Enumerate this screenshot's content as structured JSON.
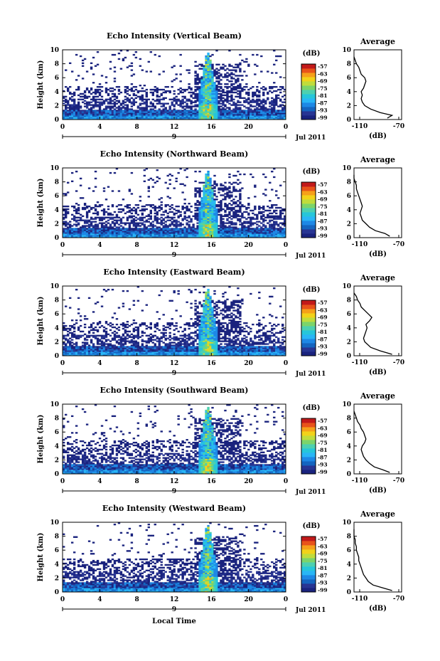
{
  "chart_data": [
    {
      "type": "heatmap",
      "title": "Echo Intensity (Vertical Beam)",
      "beam": "vertical",
      "ylabel": "Height (km)",
      "ylim": [
        0,
        10
      ],
      "yticks": [
        "0",
        "2",
        "4",
        "6",
        "8",
        "10"
      ],
      "xticks": [
        "0",
        "4",
        "8",
        "12",
        "16",
        "20",
        "0"
      ],
      "date_tick": "9",
      "date_label": "Jul 2011",
      "colorbar": {
        "unit": "(dB)",
        "ticks": [
          "-57",
          "-63",
          "-69",
          "-75",
          "-81",
          "-87",
          "-93",
          "-99"
        ]
      },
      "average": {
        "title": "Average",
        "xlabel": "(dB)",
        "xticks": [
          "-110",
          "-70"
        ],
        "xlim": [
          -110,
          -70
        ],
        "ylim": [
          0,
          10
        ],
        "profile": [
          [
            -82,
            0.2
          ],
          [
            -78,
            0.6
          ],
          [
            -88,
            1.0
          ],
          [
            -96,
            1.5
          ],
          [
            -101,
            2.0
          ],
          [
            -103,
            2.5
          ],
          [
            -104,
            3.0
          ],
          [
            -103,
            3.5
          ],
          [
            -104,
            4.0
          ],
          [
            -102,
            4.5
          ],
          [
            -101,
            5.0
          ],
          [
            -100,
            5.5
          ],
          [
            -101,
            6.0
          ],
          [
            -104,
            6.5
          ],
          [
            -105,
            7.0
          ],
          [
            -106,
            7.5
          ],
          [
            -108,
            8.0
          ],
          [
            -109,
            8.5
          ],
          [
            -110,
            9.0
          ]
        ]
      }
    },
    {
      "type": "heatmap",
      "title": "Echo Intensity (Northward Beam)",
      "beam": "northward",
      "ylabel": "Height (km)",
      "ylim": [
        0,
        10
      ],
      "yticks": [
        "0",
        "2",
        "4",
        "6",
        "8",
        "10"
      ],
      "xticks": [
        "0",
        "4",
        "8",
        "12",
        "16",
        "20",
        "0"
      ],
      "date_tick": "9",
      "date_label": "Jul 2011",
      "colorbar": {
        "unit": "(dB)",
        "ticks": [
          "-57",
          "-63",
          "-69",
          "-75",
          "-81",
          "-87",
          "-93",
          "-99"
        ]
      },
      "average": {
        "title": "Average",
        "xlabel": "(dB)",
        "xticks": [
          "-110",
          "-70"
        ],
        "xlim": [
          -110,
          -70
        ],
        "ylim": [
          0,
          10
        ],
        "profile": [
          [
            -80,
            0.2
          ],
          [
            -84,
            0.6
          ],
          [
            -92,
            1.0
          ],
          [
            -97,
            1.5
          ],
          [
            -100,
            2.0
          ],
          [
            -103,
            2.5
          ],
          [
            -104,
            3.0
          ],
          [
            -105,
            3.5
          ],
          [
            -104,
            4.0
          ],
          [
            -103,
            4.5
          ],
          [
            -104,
            5.0
          ],
          [
            -105,
            5.5
          ],
          [
            -106,
            6.0
          ],
          [
            -107,
            6.5
          ],
          [
            -108,
            7.0
          ],
          [
            -108,
            7.5
          ],
          [
            -109,
            8.0
          ],
          [
            -110,
            8.5
          ],
          [
            -110,
            9.0
          ]
        ]
      }
    },
    {
      "type": "heatmap",
      "title": "Echo Intensity (Eastward Beam)",
      "beam": "eastward",
      "ylabel": "Height (km)",
      "ylim": [
        0,
        10
      ],
      "yticks": [
        "0",
        "2",
        "4",
        "6",
        "8",
        "10"
      ],
      "xticks": [
        "0",
        "4",
        "8",
        "12",
        "16",
        "20",
        "0"
      ],
      "date_tick": "9",
      "date_label": "Jul 2011",
      "colorbar": {
        "unit": "(dB)",
        "ticks": [
          "-57",
          "-63",
          "-69",
          "-75",
          "-81",
          "-87",
          "-93",
          "-99"
        ]
      },
      "average": {
        "title": "Average",
        "xlabel": "(dB)",
        "xticks": [
          "-110",
          "-70"
        ],
        "xlim": [
          -110,
          -70
        ],
        "ylim": [
          0,
          10
        ],
        "profile": [
          [
            -78,
            0.2
          ],
          [
            -88,
            0.7
          ],
          [
            -96,
            1.2
          ],
          [
            -101,
            2.0
          ],
          [
            -102,
            2.5
          ],
          [
            -101,
            3.0
          ],
          [
            -100,
            3.5
          ],
          [
            -99,
            4.0
          ],
          [
            -100,
            4.5
          ],
          [
            -97,
            5.0
          ],
          [
            -95,
            5.5
          ],
          [
            -98,
            6.0
          ],
          [
            -101,
            6.5
          ],
          [
            -104,
            7.0
          ],
          [
            -105,
            7.5
          ],
          [
            -107,
            8.0
          ],
          [
            -108,
            8.5
          ],
          [
            -110,
            9.0
          ]
        ]
      }
    },
    {
      "type": "heatmap",
      "title": "Echo Intensity (Southward Beam)",
      "beam": "southward",
      "ylabel": "Height (km)",
      "ylim": [
        0,
        10
      ],
      "yticks": [
        "0",
        "2",
        "4",
        "6",
        "8",
        "10"
      ],
      "xticks": [
        "0",
        "4",
        "8",
        "12",
        "16",
        "20",
        "0"
      ],
      "date_tick": "9",
      "date_label": "Jul 2011",
      "colorbar": {
        "unit": "(dB)",
        "ticks": [
          "-57",
          "-63",
          "-69",
          "-75",
          "-81",
          "-87",
          "-93",
          "-99"
        ]
      },
      "average": {
        "title": "Average",
        "xlabel": "(dB)",
        "xticks": [
          "-110",
          "-70"
        ],
        "xlim": [
          -110,
          -70
        ],
        "ylim": [
          0,
          10
        ],
        "profile": [
          [
            -80,
            0.2
          ],
          [
            -86,
            0.6
          ],
          [
            -93,
            1.0
          ],
          [
            -97,
            1.5
          ],
          [
            -100,
            2.0
          ],
          [
            -102,
            2.5
          ],
          [
            -103,
            3.0
          ],
          [
            -104,
            3.5
          ],
          [
            -103,
            4.0
          ],
          [
            -101,
            4.5
          ],
          [
            -100,
            5.0
          ],
          [
            -101,
            5.5
          ],
          [
            -102,
            6.0
          ],
          [
            -104,
            6.5
          ],
          [
            -105,
            7.0
          ],
          [
            -107,
            7.5
          ],
          [
            -108,
            8.0
          ],
          [
            -109,
            8.5
          ],
          [
            -110,
            9.0
          ]
        ]
      }
    },
    {
      "type": "heatmap",
      "title": "Echo Intensity (Westward Beam)",
      "beam": "westward",
      "ylabel": "Height (km)",
      "ylim": [
        0,
        10
      ],
      "yticks": [
        "0",
        "2",
        "4",
        "6",
        "8",
        "10"
      ],
      "xticks": [
        "0",
        "4",
        "8",
        "12",
        "16",
        "20",
        "0"
      ],
      "date_tick": "9",
      "date_label": "Jul 2011",
      "xlabel": "Local Time",
      "colorbar": {
        "unit": "(dB)",
        "ticks": [
          "-57",
          "-63",
          "-69",
          "-75",
          "-81",
          "-87",
          "-93",
          "-99"
        ]
      },
      "average": {
        "title": "Average",
        "xlabel": "(dB)",
        "xticks": [
          "-110",
          "-70"
        ],
        "xlim": [
          -110,
          -70
        ],
        "ylim": [
          0,
          10
        ],
        "profile": [
          [
            -78,
            0.2
          ],
          [
            -86,
            0.6
          ],
          [
            -94,
            1.0
          ],
          [
            -98,
            1.5
          ],
          [
            -100,
            2.0
          ],
          [
            -102,
            2.5
          ],
          [
            -103,
            3.0
          ],
          [
            -104,
            3.5
          ],
          [
            -105,
            4.0
          ],
          [
            -106,
            4.5
          ],
          [
            -106,
            5.0
          ],
          [
            -107,
            5.5
          ],
          [
            -108,
            6.0
          ],
          [
            -108,
            6.5
          ],
          [
            -109,
            7.0
          ],
          [
            -109,
            7.5
          ],
          [
            -110,
            8.0
          ],
          [
            -110,
            8.5
          ],
          [
            -110,
            9.0
          ]
        ]
      }
    }
  ],
  "colormap": [
    "#1a237e",
    "#283593",
    "#1565c0",
    "#1e88e5",
    "#29b6f6",
    "#26c6da",
    "#4dd0b0",
    "#7cd46a",
    "#c0dc3c",
    "#f2d21a",
    "#f6a01a",
    "#e8531a",
    "#c21a1a"
  ]
}
